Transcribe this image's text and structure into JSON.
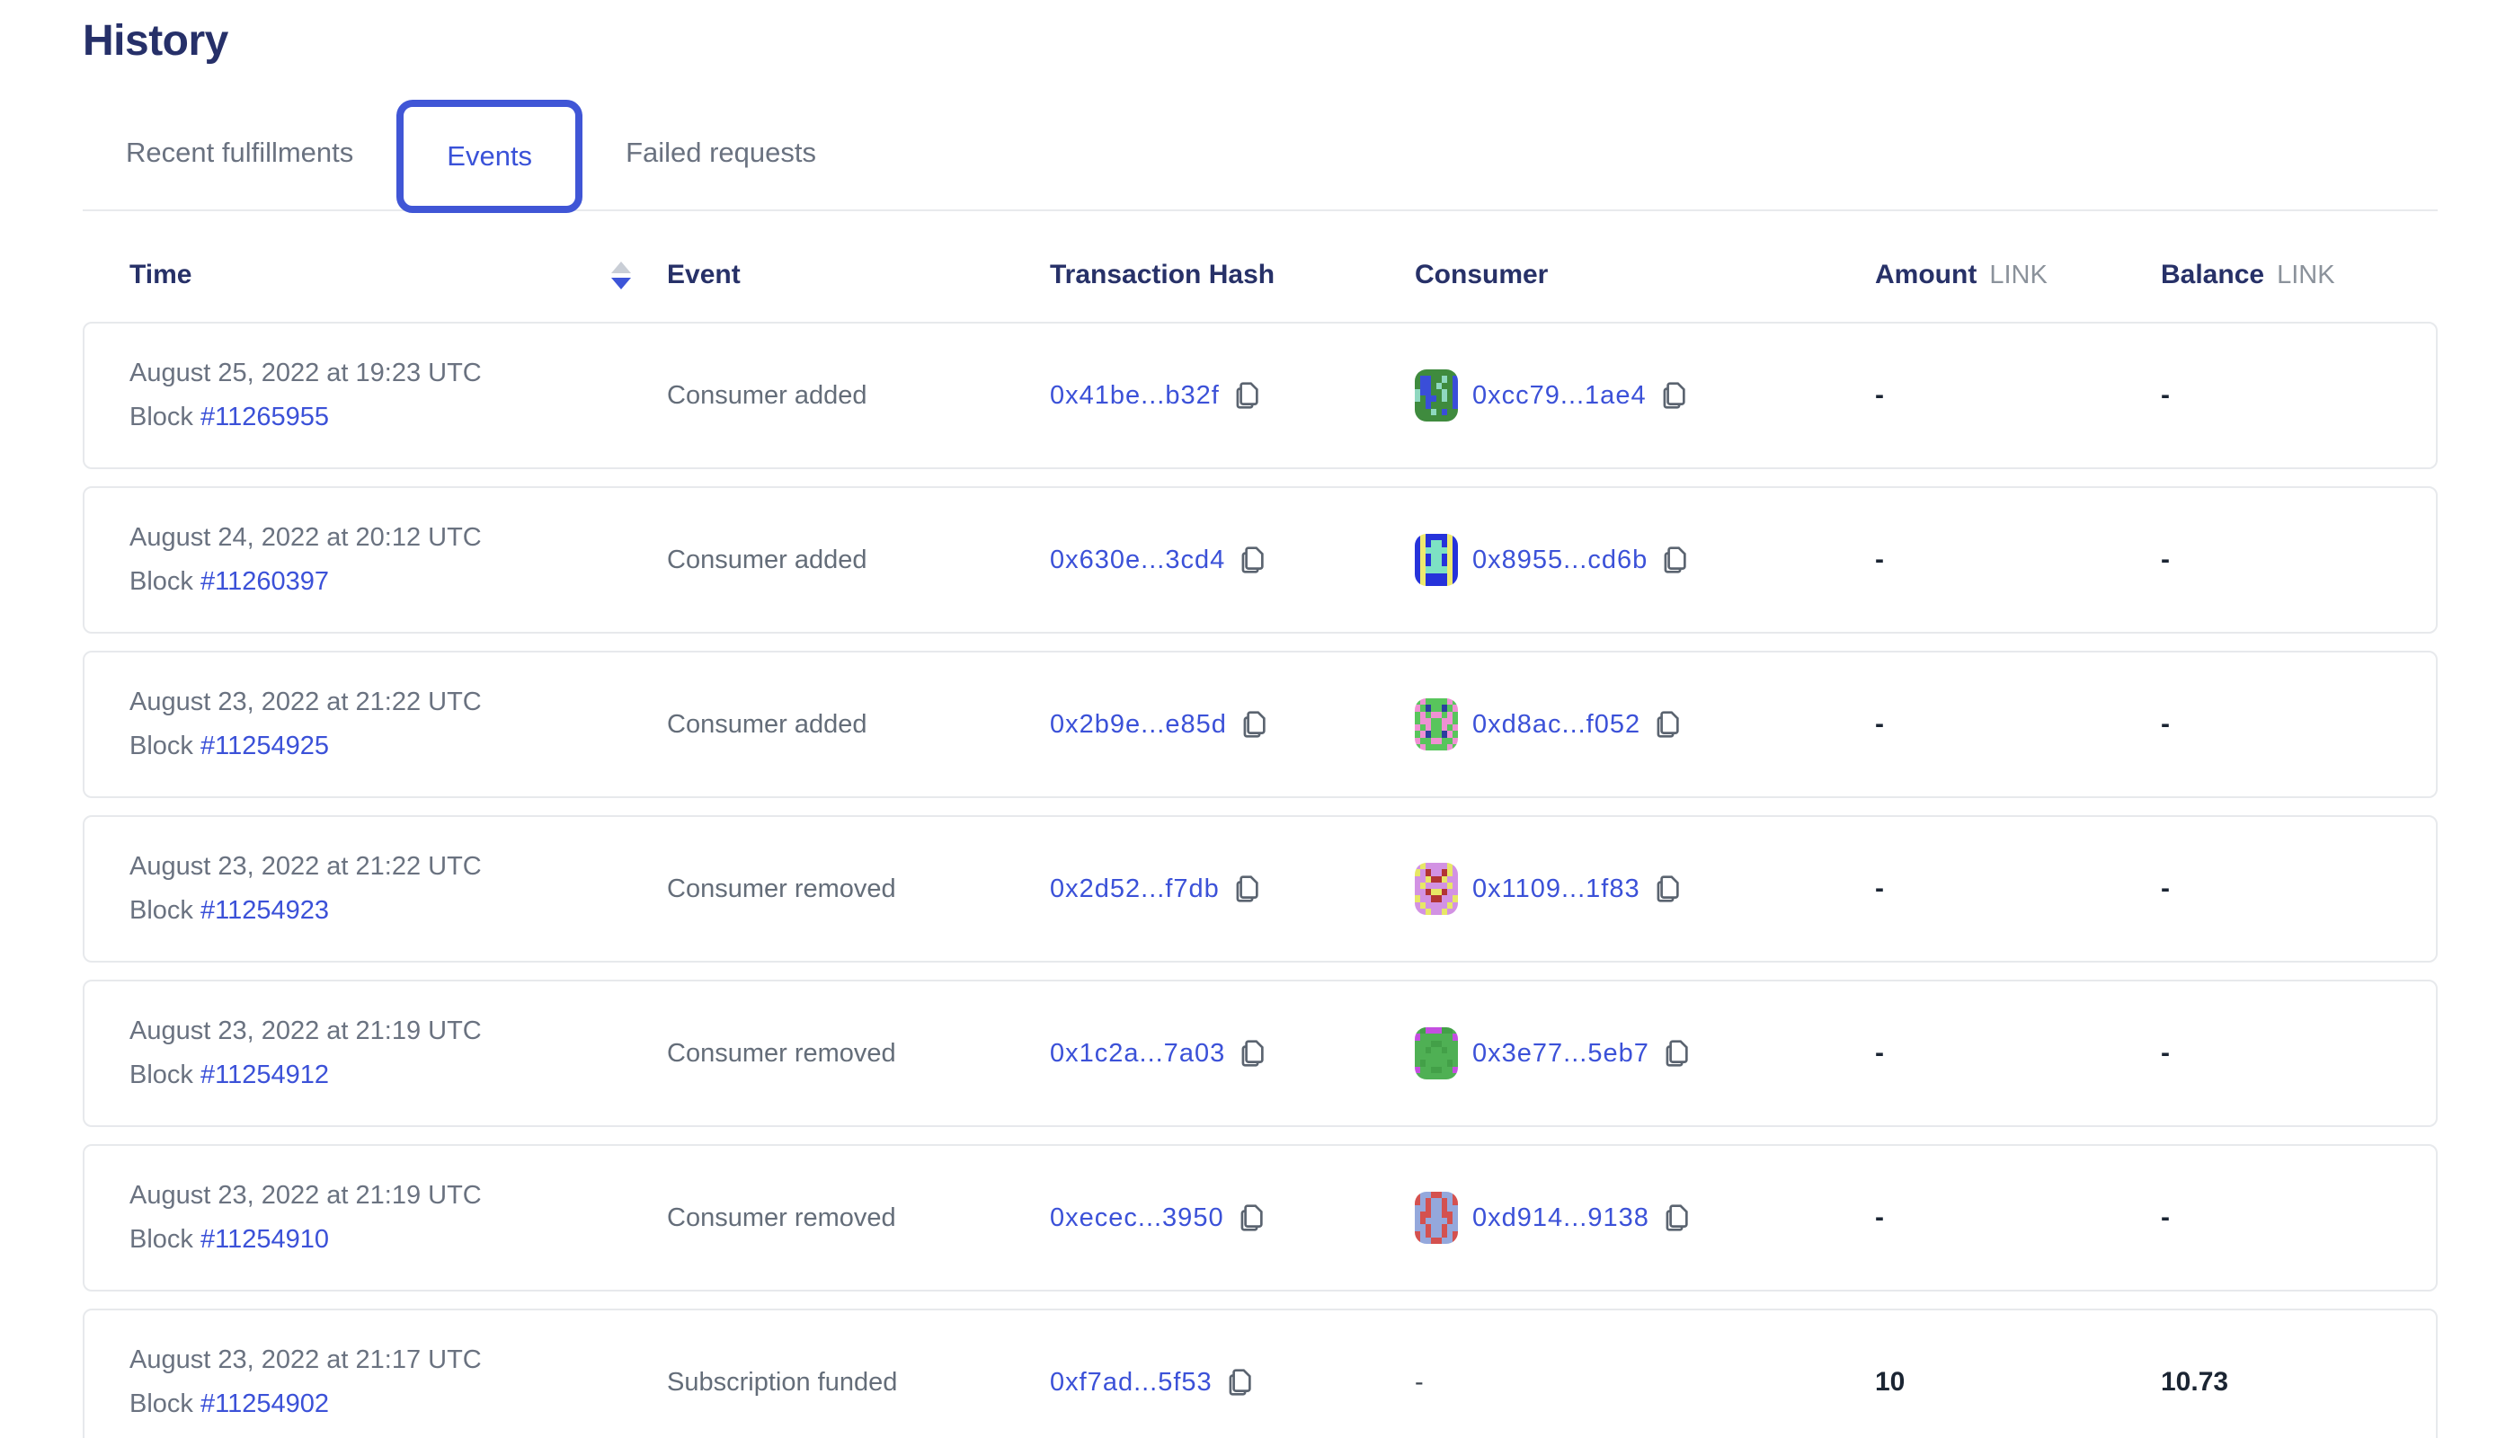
{
  "page": {
    "title": "History"
  },
  "tabs": [
    {
      "label": "Recent fulfillments",
      "active": false
    },
    {
      "label": "Events",
      "active": true
    },
    {
      "label": "Failed requests",
      "active": false
    }
  ],
  "colors": {
    "accent_blue": "#3a52d8",
    "tab_border_blue": "#4056d6",
    "link_blue": "#3b51d8",
    "heading_navy": "#263069",
    "text_gray": "#6a7280",
    "card_border": "#e7e9ec",
    "value_dark": "#1b2533"
  },
  "icons": {
    "sort_descending": "▼ over ▲ (descending active)",
    "copy": "two overlapping document outlines"
  },
  "table": {
    "columns": {
      "time": "Time",
      "event": "Event",
      "hash": "Transaction Hash",
      "consumer": "Consumer",
      "amount": "Amount",
      "balance": "Balance",
      "unit": "LINK"
    },
    "block_label": "Block",
    "rows": [
      {
        "date": "August 25, 2022 at 19:23 UTC",
        "block": "#11265955",
        "event": "Consumer added",
        "tx": "0x41be...b32f",
        "consumer": "0xcc79...1ae4",
        "amount": "-",
        "balance": "-",
        "avatar": {
          "palette": {
            "g": "#3f8b3e",
            "b": "#3a4ed9",
            "m": "#8fd8c0"
          },
          "pattern": [
            "gggggggg",
            "gbbggmgb",
            "gbbgmggb",
            "mbbggmgb",
            "mgbbgmgb",
            "ggbggggb",
            "gggmgbgg",
            "gggggggg"
          ]
        }
      },
      {
        "date": "August 24, 2022 at 20:12 UTC",
        "block": "#11260397",
        "event": "Consumer added",
        "tx": "0x630e...3cd4",
        "consumer": "0x8955...cd6b",
        "amount": "-",
        "balance": "-",
        "avatar": {
          "palette": {
            "b": "#2633da",
            "y": "#eeea6e",
            "m": "#7de2c3"
          },
          "pattern": [
            "bybbbbyb",
            "bybmmbyb",
            "bymmmmyb",
            "bybmmbyb",
            "bybmmbyb",
            "bymmmmyb",
            "bybbbbyb",
            "bybbbbyb"
          ]
        }
      },
      {
        "date": "August 23, 2022 at 21:22 UTC",
        "block": "#11254925",
        "event": "Consumer added",
        "tx": "0x2b9e...e85d",
        "consumer": "0xd8ac...f052",
        "amount": "-",
        "balance": "-",
        "avatar": {
          "palette": {
            "g": "#58c55c",
            "p": "#ef91d3",
            "n": "#2b3f9e"
          },
          "pattern": [
            "gpggggpg",
            "pgnggngp",
            "gpgppgpg",
            "gppggppg",
            "pgpggpgp",
            "gpnggnpg",
            "pggppggp",
            "gpggggpg"
          ]
        }
      },
      {
        "date": "August 23, 2022 at 21:22 UTC",
        "block": "#11254923",
        "event": "Consumer removed",
        "tx": "0x2d52...f7db",
        "consumer": "0x1109...1f83",
        "amount": "-",
        "balance": "-",
        "avatar": {
          "palette": {
            "v": "#d292e3",
            "y": "#e7e766",
            "r": "#b23434"
          },
          "pattern": [
            "vyvvvvyv",
            "yvrvvryv",
            "vvyrryvv",
            "vyvvvvyv",
            "vvryyrvv",
            "yvvrrvvy",
            "vyvvvvyv",
            "vvyvvyvv"
          ]
        }
      },
      {
        "date": "August 23, 2022 at 21:19 UTC",
        "block": "#11254912",
        "event": "Consumer removed",
        "tx": "0x1c2a...7a03",
        "consumer": "0x3e77...5eb7",
        "amount": "-",
        "balance": "-",
        "avatar": {
          "palette": {
            "g": "#4fb054",
            "d": "#43a048",
            "p": "#c44fe0"
          },
          "pattern": [
            "gdpppddg",
            "pggggggp",
            "gggddggg",
            "ggdggdgg",
            "gggggggg",
            "gdggggdg",
            "pggddggp",
            "gggggggg"
          ]
        }
      },
      {
        "date": "August 23, 2022 at 21:19 UTC",
        "block": "#11254910",
        "event": "Consumer removed",
        "tx": "0xecec...3950",
        "consumer": "0xd914...9138",
        "amount": "-",
        "balance": "-",
        "avatar": {
          "palette": {
            "r": "#d4514f",
            "s": "#94a8dc"
          },
          "pattern": [
            "rssrrssr",
            "rsrssrsr",
            "ssrssrss",
            "srrssrrs",
            "srssssrs",
            "ssrssrss",
            "rsrssrsr",
            "rssrrssr"
          ]
        }
      },
      {
        "date": "August 23, 2022 at 21:17 UTC",
        "block": "#11254902",
        "event": "Subscription funded",
        "tx": "0xf7ad...5f53",
        "consumer": "-",
        "amount": "10",
        "balance": "10.73",
        "avatar": null
      }
    ]
  }
}
